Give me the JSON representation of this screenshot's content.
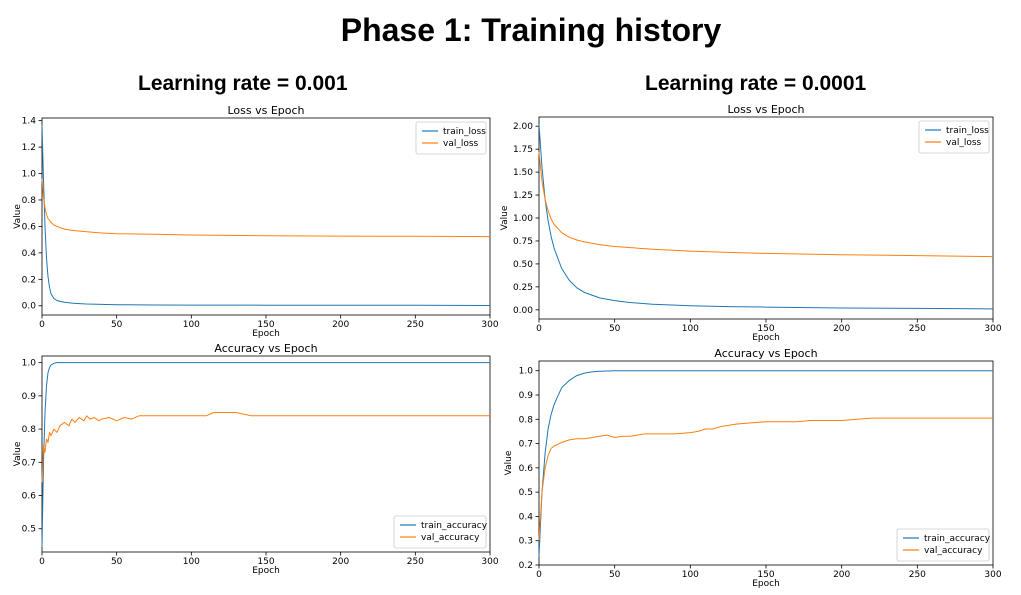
{
  "figure": {
    "title": "Phase 1: Training history",
    "columns": [
      {
        "title": "Learning rate = 0.001"
      },
      {
        "title": "Learning rate = 0.0001"
      }
    ]
  },
  "colors": {
    "train": "#1f77b4",
    "val": "#ff7f0e"
  },
  "chart_data": [
    {
      "id": "lr001-loss",
      "type": "line",
      "title": "Loss vs Epoch",
      "xlabel": "Epoch",
      "ylabel": "Value",
      "xlim": [
        0,
        300
      ],
      "ylim": [
        -0.07,
        1.42
      ],
      "xticks": [
        0,
        50,
        100,
        150,
        200,
        250,
        300
      ],
      "yticks": [
        0.0,
        0.2,
        0.4,
        0.6,
        0.8,
        1.0,
        1.2,
        1.4
      ],
      "yticklabels": [
        "0.0",
        "0.2",
        "0.4",
        "0.6",
        "0.8",
        "1.0",
        "1.2",
        "1.4"
      ],
      "legend": "top-right",
      "grid": false,
      "series": [
        {
          "name": "train_loss",
          "color": "#1f77b4",
          "x": [
            0,
            1,
            2,
            3,
            4,
            5,
            6,
            8,
            10,
            12,
            15,
            20,
            25,
            30,
            40,
            50,
            75,
            100,
            150,
            200,
            250,
            300
          ],
          "y": [
            1.37,
            0.95,
            0.6,
            0.36,
            0.22,
            0.14,
            0.09,
            0.055,
            0.04,
            0.033,
            0.026,
            0.02,
            0.016,
            0.013,
            0.01,
            0.008,
            0.006,
            0.005,
            0.004,
            0.003,
            0.003,
            0.002
          ]
        },
        {
          "name": "val_loss",
          "color": "#ff7f0e",
          "x": [
            0,
            1,
            2,
            3,
            4,
            6,
            8,
            10,
            15,
            20,
            30,
            40,
            50,
            75,
            100,
            150,
            200,
            250,
            300
          ],
          "y": [
            0.96,
            0.82,
            0.74,
            0.69,
            0.66,
            0.63,
            0.61,
            0.6,
            0.58,
            0.57,
            0.56,
            0.55,
            0.545,
            0.54,
            0.535,
            0.53,
            0.527,
            0.525,
            0.523
          ]
        }
      ]
    },
    {
      "id": "lr001-acc",
      "type": "line",
      "title": "Accuracy vs Epoch",
      "xlabel": "Epoch",
      "ylabel": "Value",
      "xlim": [
        0,
        300
      ],
      "ylim": [
        0.43,
        1.02
      ],
      "xticks": [
        0,
        50,
        100,
        150,
        200,
        250,
        300
      ],
      "yticks": [
        0.5,
        0.6,
        0.7,
        0.8,
        0.9,
        1.0
      ],
      "yticklabels": [
        "0.5",
        "0.6",
        "0.7",
        "0.8",
        "0.9",
        "1.0"
      ],
      "legend": "bottom-right",
      "grid": false,
      "series": [
        {
          "name": "train_accuracy",
          "color": "#1f77b4",
          "x": [
            0,
            1,
            2,
            3,
            4,
            5,
            6,
            8,
            10,
            15,
            20,
            300
          ],
          "y": [
            0.445,
            0.7,
            0.85,
            0.93,
            0.97,
            0.985,
            0.993,
            0.998,
            1.0,
            1.0,
            1.0,
            1.0
          ]
        },
        {
          "name": "val_accuracy",
          "color": "#ff7f0e",
          "x": [
            0,
            1,
            2,
            3,
            4,
            5,
            6,
            8,
            10,
            12,
            15,
            18,
            20,
            22,
            25,
            28,
            30,
            32,
            35,
            38,
            40,
            45,
            50,
            55,
            60,
            65,
            70,
            80,
            90,
            100,
            110,
            115,
            120,
            130,
            135,
            140,
            150,
            200,
            250,
            300
          ],
          "y": [
            0.64,
            0.75,
            0.73,
            0.77,
            0.76,
            0.79,
            0.78,
            0.8,
            0.79,
            0.81,
            0.82,
            0.81,
            0.83,
            0.82,
            0.835,
            0.825,
            0.84,
            0.83,
            0.835,
            0.825,
            0.83,
            0.835,
            0.825,
            0.835,
            0.83,
            0.84,
            0.84,
            0.84,
            0.84,
            0.84,
            0.84,
            0.85,
            0.85,
            0.85,
            0.845,
            0.84,
            0.84,
            0.84,
            0.84,
            0.84
          ]
        }
      ]
    },
    {
      "id": "lr0001-loss",
      "type": "line",
      "title": "Loss vs Epoch",
      "xlabel": "Epoch",
      "ylabel": "Value",
      "xlim": [
        0,
        300
      ],
      "ylim": [
        -0.1,
        2.1
      ],
      "xticks": [
        0,
        50,
        100,
        150,
        200,
        250,
        300
      ],
      "yticks": [
        0.0,
        0.25,
        0.5,
        0.75,
        1.0,
        1.25,
        1.5,
        1.75,
        2.0
      ],
      "yticklabels": [
        "0.00",
        "0.25",
        "0.50",
        "0.75",
        "1.00",
        "1.25",
        "1.50",
        "1.75",
        "2.00"
      ],
      "legend": "top-right",
      "grid": false,
      "series": [
        {
          "name": "train_loss",
          "color": "#1f77b4",
          "x": [
            0,
            2,
            4,
            6,
            8,
            10,
            15,
            20,
            25,
            30,
            40,
            50,
            60,
            75,
            100,
            125,
            150,
            200,
            250,
            300
          ],
          "y": [
            2.02,
            1.55,
            1.2,
            0.97,
            0.8,
            0.67,
            0.45,
            0.32,
            0.24,
            0.19,
            0.13,
            0.1,
            0.08,
            0.06,
            0.045,
            0.035,
            0.03,
            0.02,
            0.015,
            0.01
          ]
        },
        {
          "name": "val_loss",
          "color": "#ff7f0e",
          "x": [
            0,
            2,
            4,
            6,
            8,
            10,
            15,
            20,
            25,
            30,
            40,
            50,
            75,
            100,
            125,
            150,
            200,
            250,
            300
          ],
          "y": [
            1.72,
            1.4,
            1.2,
            1.08,
            0.99,
            0.93,
            0.84,
            0.79,
            0.76,
            0.74,
            0.71,
            0.69,
            0.66,
            0.64,
            0.625,
            0.615,
            0.6,
            0.59,
            0.58
          ]
        }
      ]
    },
    {
      "id": "lr0001-acc",
      "type": "line",
      "title": "Accuracy vs Epoch",
      "xlabel": "Epoch",
      "ylabel": "Value",
      "xlim": [
        0,
        300
      ],
      "ylim": [
        0.2,
        1.04
      ],
      "xticks": [
        0,
        50,
        100,
        150,
        200,
        250,
        300
      ],
      "yticks": [
        0.2,
        0.3,
        0.4,
        0.5,
        0.6,
        0.7,
        0.8,
        0.9,
        1.0
      ],
      "yticklabels": [
        "0.2",
        "0.3",
        "0.4",
        "0.5",
        "0.6",
        "0.7",
        "0.8",
        "0.9",
        "1.0"
      ],
      "legend": "bottom-right",
      "grid": false,
      "series": [
        {
          "name": "train_accuracy",
          "color": "#1f77b4",
          "x": [
            0,
            2,
            4,
            6,
            8,
            10,
            12,
            15,
            20,
            25,
            30,
            35,
            40,
            50,
            300
          ],
          "y": [
            0.235,
            0.5,
            0.66,
            0.76,
            0.82,
            0.86,
            0.89,
            0.93,
            0.96,
            0.98,
            0.99,
            0.995,
            0.998,
            1.0,
            1.0
          ]
        },
        {
          "name": "val_accuracy",
          "color": "#ff7f0e",
          "x": [
            0,
            2,
            4,
            6,
            8,
            10,
            15,
            20,
            25,
            30,
            35,
            40,
            45,
            50,
            55,
            60,
            65,
            70,
            75,
            80,
            90,
            100,
            105,
            110,
            115,
            120,
            125,
            130,
            140,
            150,
            160,
            170,
            180,
            190,
            200,
            210,
            220,
            250,
            300
          ],
          "y": [
            0.3,
            0.5,
            0.6,
            0.65,
            0.68,
            0.69,
            0.705,
            0.715,
            0.72,
            0.72,
            0.725,
            0.73,
            0.735,
            0.725,
            0.73,
            0.73,
            0.735,
            0.74,
            0.74,
            0.74,
            0.74,
            0.745,
            0.75,
            0.76,
            0.76,
            0.77,
            0.775,
            0.78,
            0.785,
            0.79,
            0.79,
            0.79,
            0.795,
            0.795,
            0.795,
            0.8,
            0.805,
            0.805,
            0.805
          ]
        }
      ]
    }
  ]
}
